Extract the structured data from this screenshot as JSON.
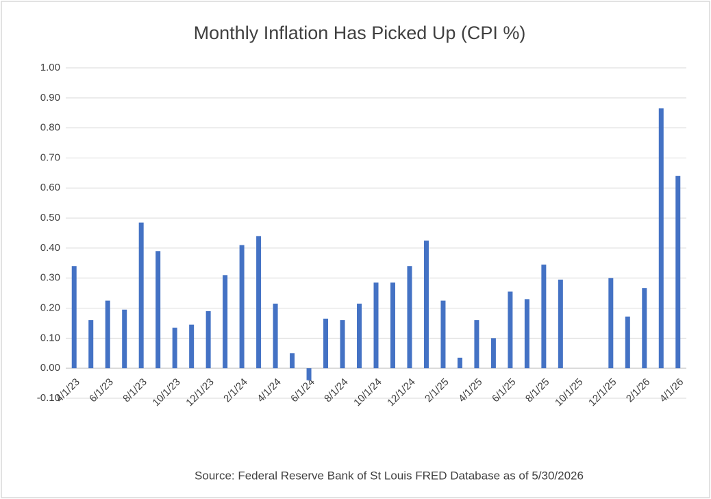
{
  "chart_data": {
    "type": "bar",
    "title": "Monthly Inflation Has Picked Up (CPI %)",
    "source": "Source: Federal Reserve Bank of St Louis FRED Database as of 5/30/2026",
    "categories": [
      "4/1/23",
      null,
      "6/1/23",
      null,
      "8/1/23",
      null,
      "10/1/23",
      null,
      "12/1/23",
      null,
      "2/1/24",
      null,
      "4/1/24",
      null,
      "6/1/24",
      null,
      "8/1/24",
      null,
      "10/1/24",
      null,
      "12/1/24",
      null,
      "2/1/25",
      null,
      "4/1/25",
      null,
      "6/1/25",
      null,
      "8/1/25",
      null,
      "10/1/25",
      null,
      "12/1/25",
      null,
      "2/1/26",
      null,
      "4/1/26"
    ],
    "values": [
      0.34,
      0.16,
      0.225,
      0.195,
      0.485,
      0.39,
      0.135,
      0.145,
      0.19,
      0.31,
      0.41,
      0.44,
      0.215,
      0.05,
      -0.04,
      0.165,
      0.16,
      0.215,
      0.285,
      0.285,
      0.34,
      0.425,
      0.225,
      0.035,
      0.16,
      0.1,
      0.255,
      0.23,
      0.345,
      0.295,
      null,
      null,
      0.3,
      0.172,
      0.267,
      0.865,
      0.64
    ],
    "color": "#4472c4",
    "ylim": [
      -0.1,
      1.0
    ],
    "yticks": [
      {
        "value": -0.1,
        "label": "-0.10"
      },
      {
        "value": 0,
        "label": "0.00"
      },
      {
        "value": 0.1,
        "label": "0.10"
      },
      {
        "value": 0.2,
        "label": "0.20"
      },
      {
        "value": 0.3,
        "label": "0.30"
      },
      {
        "value": 0.4,
        "label": "0.40"
      },
      {
        "value": 0.5,
        "label": "0.50"
      },
      {
        "value": 0.6,
        "label": "0.60"
      },
      {
        "value": 0.7,
        "label": "0.70"
      },
      {
        "value": 0.8,
        "label": "0.80"
      },
      {
        "value": 0.9,
        "label": "0.90"
      },
      {
        "value": 1.0,
        "label": "1.00"
      }
    ],
    "grid": true
  }
}
